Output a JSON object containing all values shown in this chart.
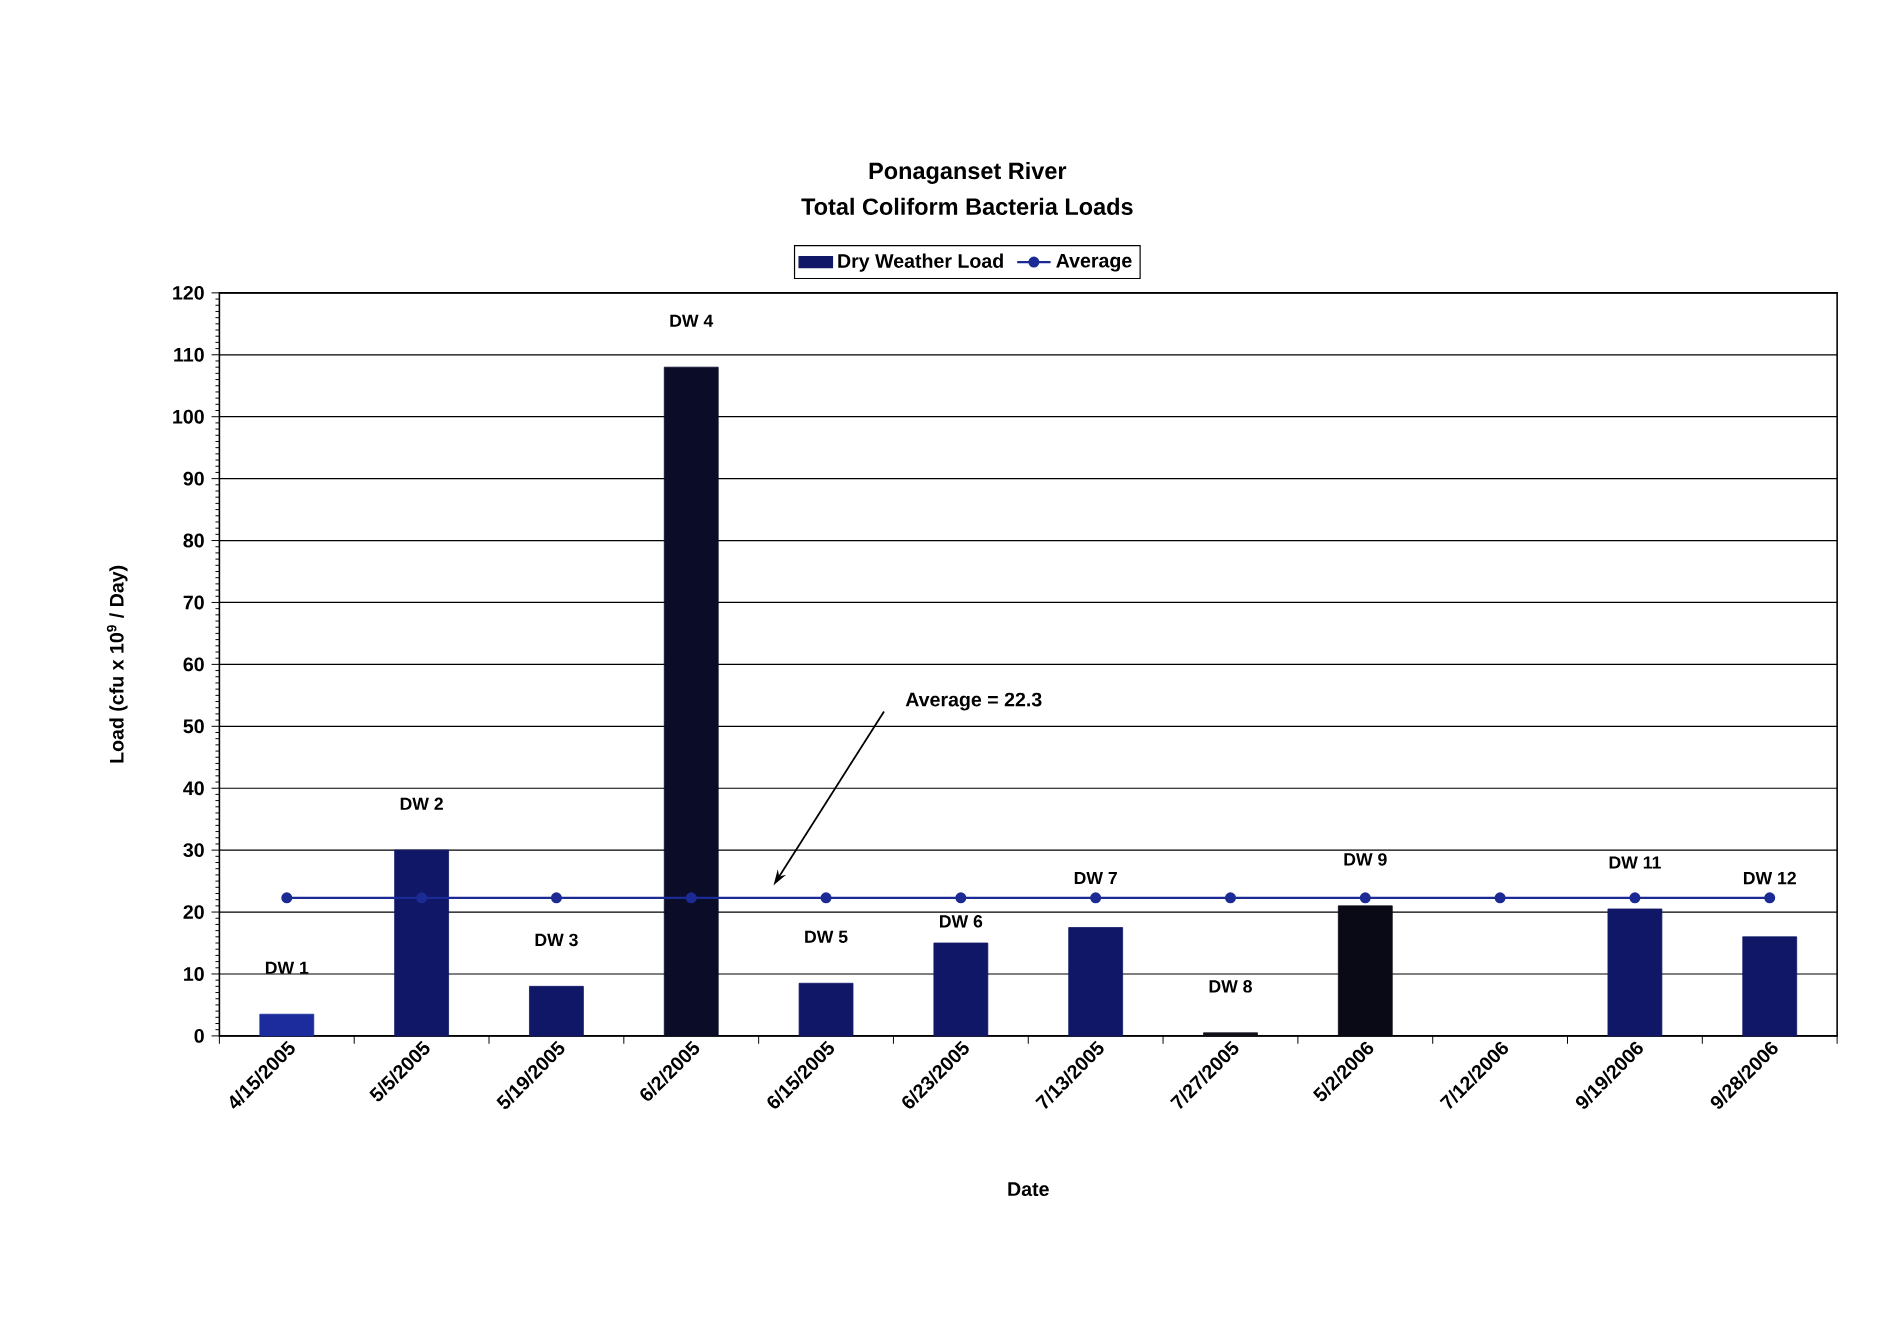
{
  "chart_data": {
    "type": "bar",
    "title": "Ponaganset River",
    "subtitle": "Total Coliform Bacteria Loads",
    "xlabel": "Date",
    "ylabel": "Load (cfu x 10$^{9}$ / Day)",
    "categories": [
      "4/15/2005",
      "5/5/2005",
      "5/19/2005",
      "6/2/2005",
      "6/15/2005",
      "6/23/2005",
      "7/13/2005",
      "7/27/2005",
      "5/2/2006",
      "7/12/2006",
      "9/19/2006",
      "9/28/2006"
    ],
    "series": [
      {
        "name": "Dry Weather Load",
        "color": "#0f1766",
        "colors": [
          "#1c2c9c",
          "#0f1766",
          "#0f1766",
          "#0a0c28",
          "#0f1766",
          "#0f1766",
          "#0f1766",
          "#101018",
          "#0a0a16",
          "#0f1766",
          "#0f1766",
          "#0f1766"
        ],
        "values": [
          3.5,
          30,
          8,
          108,
          8.5,
          15,
          17.5,
          0.5,
          21,
          null,
          20.5,
          16
        ]
      },
      {
        "name": "Average",
        "type": "line",
        "color": "#1c2b94",
        "marker": "circle",
        "line_style": "solid",
        "values": [
          22.3,
          22.3,
          22.3,
          22.3,
          22.3,
          22.3,
          22.3,
          22.3,
          22.3,
          22.3,
          22.3,
          22.3
        ]
      }
    ],
    "ylim": [
      0,
      120
    ],
    "yticks": [
      0,
      10,
      20,
      30,
      40,
      50,
      60,
      70,
      80,
      90,
      100,
      110,
      120
    ],
    "grid": "y",
    "legend": "top",
    "annotations": [
      {
        "text": "DW 1",
        "x": "4/15/2005",
        "y": 3.5
      },
      {
        "text": "DW 2",
        "x": "5/5/2005",
        "y": 30
      },
      {
        "text": "DW 3",
        "x": "5/19/2005",
        "y": 8
      },
      {
        "text": "DW 4",
        "x": "6/2/2005",
        "y": 108
      },
      {
        "text": "DW 5",
        "x": "6/15/2005",
        "y": 8.5
      },
      {
        "text": "DW 6",
        "x": "6/23/2005",
        "y": 15
      },
      {
        "text": "DW 7",
        "x": "7/13/2005",
        "y": 17.5
      },
      {
        "text": "DW 8",
        "x": "7/27/2005",
        "y": 0.5
      },
      {
        "text": "DW 9",
        "x": "5/2/2006",
        "y": 21
      },
      {
        "text": "DW 11",
        "x": "9/19/2006",
        "y": 20.5
      },
      {
        "text": "DW 12",
        "x": "9/28/2006",
        "y": 16
      },
      "Average = 22.3"
    ]
  }
}
